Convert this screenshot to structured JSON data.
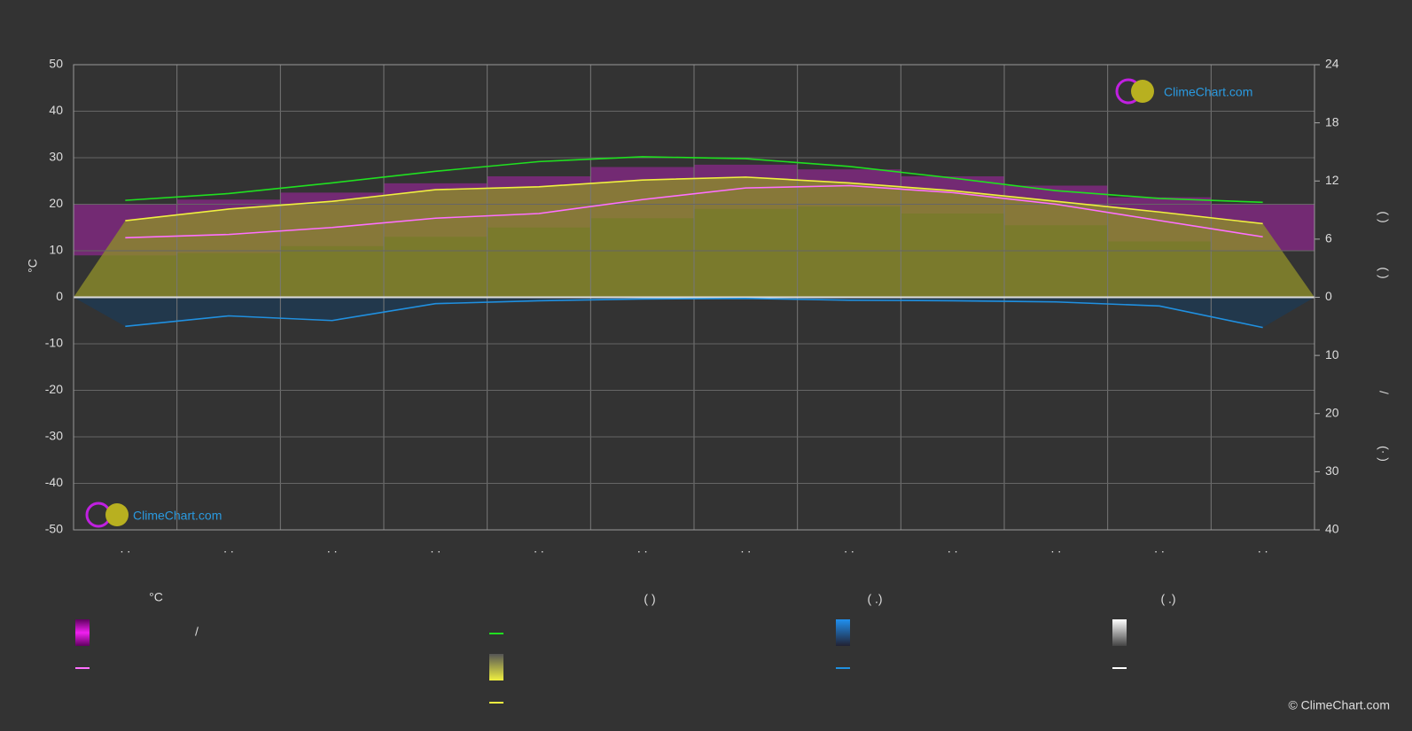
{
  "chart_data": {
    "type": "climate",
    "y_label": "°C",
    "categories": [
      ". .",
      ". .",
      ". .",
      ". .",
      ". .",
      ". .",
      ". .",
      ". .",
      ". .",
      ". .",
      ". .",
      ". ."
    ],
    "ylim": [
      -50,
      50
    ],
    "yticks": [
      -50,
      -40,
      -30,
      -20,
      -10,
      0,
      10,
      20,
      30,
      40,
      50
    ],
    "y2lim": [
      -24,
      24
    ],
    "y2ticks": [
      0,
      6,
      12,
      18,
      24
    ],
    "y3lim": [
      40,
      -40
    ],
    "y3ticks": [
      10,
      20,
      30,
      40
    ],
    "grid": true,
    "temp_band": {
      "color": "#c020c0",
      "high": [
        20,
        21,
        22.5,
        24.5,
        26,
        28,
        28.5,
        27.5,
        26,
        24,
        21.5,
        20
      ],
      "low": [
        9,
        9.5,
        11,
        13,
        15,
        17,
        19,
        19.5,
        18,
        15.5,
        12,
        10
      ]
    },
    "series": [
      {
        "color": "#20e020",
        "axis": "y2",
        "fill": false,
        "values": [
          10.0,
          10.7,
          11.8,
          13.0,
          14.0,
          14.5,
          14.3,
          13.5,
          12.3,
          11.0,
          10.2,
          9.8
        ]
      },
      {
        "color": "#f0f040",
        "axis": "y2",
        "fill": true,
        "fill_color": "#8c8c2a",
        "values": [
          7.9,
          9.1,
          9.9,
          11.1,
          11.4,
          12.1,
          12.4,
          11.8,
          11.0,
          9.9,
          8.8,
          7.6
        ]
      },
      {
        "color": "#ff70ff",
        "axis": "y",
        "fill": false,
        "values": [
          12.8,
          13.5,
          15,
          17,
          18,
          21,
          23.5,
          24,
          22.5,
          20,
          16.5,
          13
        ]
      },
      {
        "color": "#2090e0",
        "axis": "y3",
        "fill": true,
        "fill_color": "#1e3a52",
        "values": [
          5.0,
          3.2,
          4.0,
          1.1,
          0.6,
          0.3,
          0.2,
          0.5,
          0.6,
          0.8,
          1.5,
          5.2
        ]
      }
    ],
    "right_labels": [
      "(   )",
      "(   )",
      "/",
      "(·  )"
    ],
    "legend": {
      "headers": [
        "°C",
        "(          )",
        "(   .)",
        "(   .)"
      ],
      "slash": "/"
    },
    "logo": "ClimeChart.com",
    "copyright": "© ClimeChart.com"
  }
}
